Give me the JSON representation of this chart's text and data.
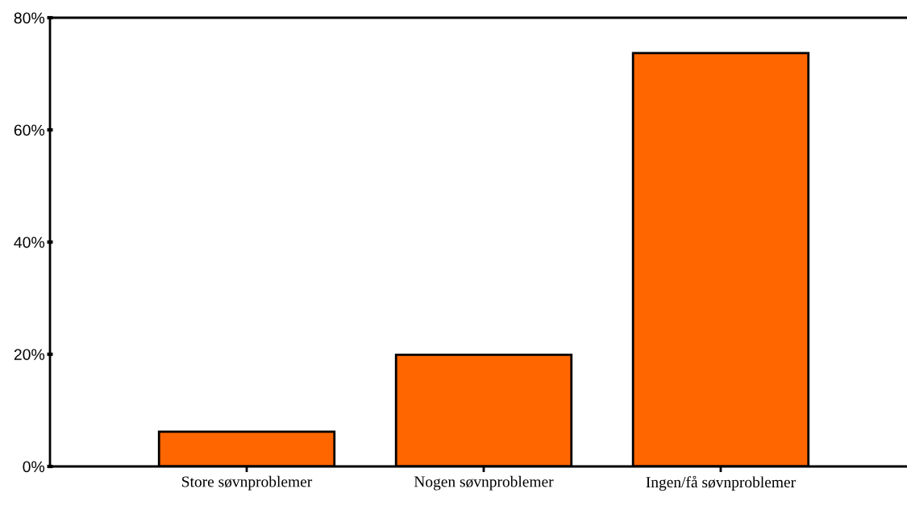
{
  "chart_data": {
    "type": "bar",
    "categories": [
      "Store søvnproblemer",
      "Nogen søvnproblemer",
      "Ingen/få søvnproblemer"
    ],
    "values": [
      6.2,
      19.9,
      73.7
    ],
    "color": "#ff6600",
    "ylim": [
      0,
      80
    ],
    "yticks": [
      {
        "value": 0,
        "label": "0%"
      },
      {
        "value": 20,
        "label": "20%"
      },
      {
        "value": 40,
        "label": "40%"
      },
      {
        "value": 60,
        "label": "60%"
      },
      {
        "value": 80,
        "label": "80%"
      }
    ],
    "grid": false,
    "legend": false
  }
}
